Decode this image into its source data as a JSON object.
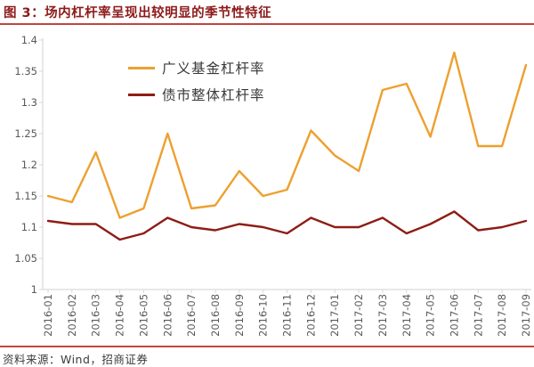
{
  "title": "图 3：场内杠杆率呈现出较明显的季节性特征",
  "footer": {
    "source": "资料来源：Wind，招商证券"
  },
  "colors": {
    "title_red": "#8E1A1A",
    "rule_red": "#C1463F",
    "series1_orange": "#EDA02F",
    "series2_maroon": "#8E1D15",
    "axis_text_gray": "#595959",
    "axis_line_gray": "#D9D9D9"
  },
  "chart_data": {
    "type": "line",
    "title": "",
    "xlabel": "",
    "ylabel": "",
    "grid": false,
    "legend_position": "inside-top-left",
    "ylim": [
      1,
      1.4
    ],
    "yticks": [
      1,
      1.05,
      1.1,
      1.15,
      1.2,
      1.25,
      1.3,
      1.35,
      1.4
    ],
    "categories": [
      "2016-01",
      "2016-02",
      "2016-03",
      "2016-04",
      "2016-05",
      "2016-06",
      "2016-07",
      "2016-08",
      "2016-09",
      "2016-10",
      "2016-11",
      "2016-12",
      "2017-01",
      "2017-02",
      "2017-03",
      "2017-04",
      "2017-05",
      "2017-06",
      "2017-07",
      "2017-08",
      "2017-09"
    ],
    "series": [
      {
        "name": "广义基金杠杆率",
        "color": "#EDA02F",
        "values": [
          1.15,
          1.14,
          1.22,
          1.115,
          1.13,
          1.25,
          1.13,
          1.135,
          1.19,
          1.15,
          1.16,
          1.255,
          1.215,
          1.19,
          1.32,
          1.33,
          1.245,
          1.38,
          1.23,
          1.23,
          1.36
        ]
      },
      {
        "name": "债市整体杠杆率",
        "color": "#8E1D15",
        "values": [
          1.11,
          1.105,
          1.105,
          1.08,
          1.09,
          1.115,
          1.1,
          1.095,
          1.105,
          1.1,
          1.09,
          1.115,
          1.1,
          1.1,
          1.115,
          1.09,
          1.105,
          1.125,
          1.095,
          1.1,
          1.11
        ]
      }
    ]
  }
}
